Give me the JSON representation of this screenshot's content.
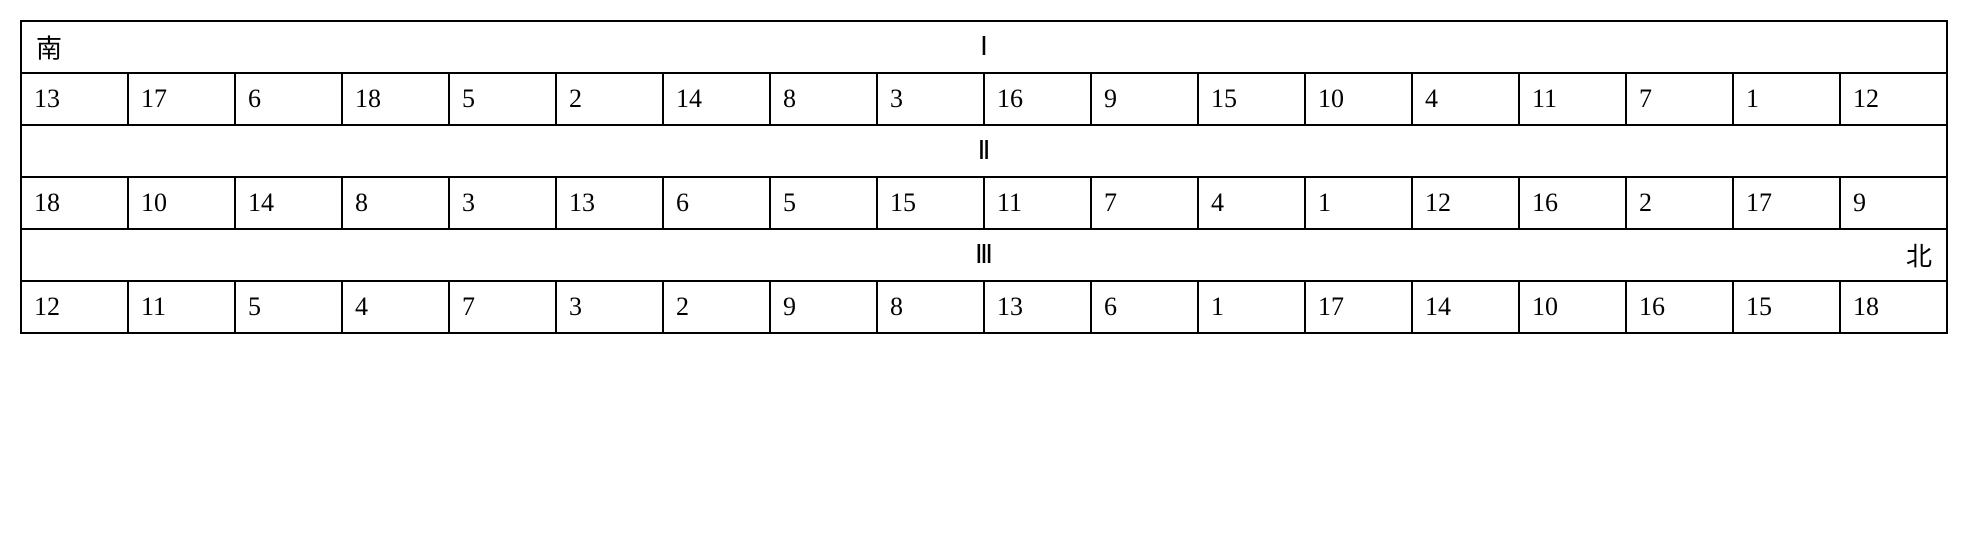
{
  "table": {
    "border_color": "#000000",
    "background_color": "#ffffff",
    "text_color": "#000000",
    "font_size_pt": 20,
    "columns": 18,
    "groups": [
      {
        "left_label": "南",
        "center_label": "Ⅰ",
        "right_label": "",
        "values": [
          13,
          17,
          6,
          18,
          5,
          2,
          14,
          8,
          3,
          16,
          9,
          15,
          10,
          4,
          11,
          7,
          1,
          12
        ]
      },
      {
        "left_label": "",
        "center_label": "Ⅱ",
        "right_label": "",
        "values": [
          18,
          10,
          14,
          8,
          3,
          13,
          6,
          5,
          15,
          11,
          7,
          4,
          1,
          12,
          16,
          2,
          17,
          9
        ]
      },
      {
        "left_label": "",
        "center_label": "Ⅲ",
        "right_label": "北",
        "values": [
          12,
          11,
          5,
          4,
          7,
          3,
          2,
          9,
          8,
          13,
          6,
          1,
          17,
          14,
          10,
          16,
          15,
          18
        ]
      }
    ]
  }
}
